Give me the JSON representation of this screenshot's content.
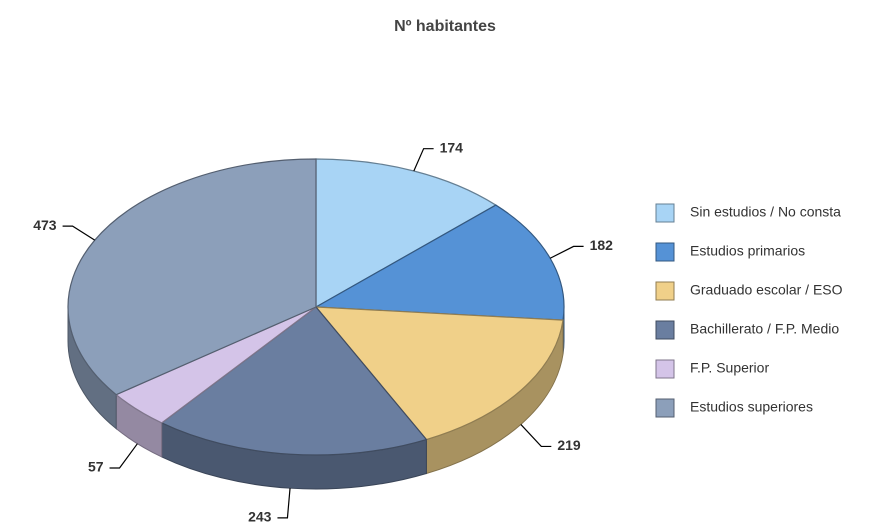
{
  "chart_data": {
    "type": "pie",
    "title": "Nº habitantes",
    "categories": [
      "Sin estudios / No consta",
      "Estudios primarios",
      "Graduado escolar / ESO",
      "Bachillerato / F.P. Medio",
      "F.P. Superior",
      "Estudios superiores"
    ],
    "values": [
      174,
      182,
      219,
      243,
      57,
      473
    ],
    "colors": [
      "#a8d4f5",
      "#5592d6",
      "#f0d089",
      "#6a7ea0",
      "#d4c4e8",
      "#8c9fba"
    ]
  }
}
